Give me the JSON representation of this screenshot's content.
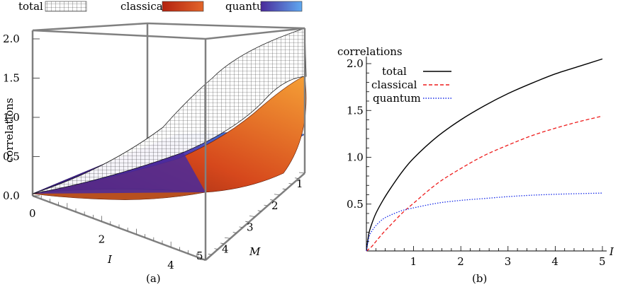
{
  "chart_data": [
    {
      "panel_label": "(a)",
      "type": "surface3d",
      "legend": [
        {
          "name": "total",
          "style": "white mesh",
          "color": "#ffffff"
        },
        {
          "name": "classical",
          "style": "orange-red surface",
          "color": "#d9501f"
        },
        {
          "name": "quantum",
          "style": "purple-blue surface",
          "color": "#4b2a96"
        }
      ],
      "zlabel": "correlations",
      "xlabel": "I",
      "ylabel": "M",
      "z_ticks": [
        "0.0",
        "0.5",
        "1.0",
        "1.5",
        "2.0"
      ],
      "x_ticks": [
        "0",
        "2",
        "4"
      ],
      "x_end_tick": "5",
      "y_ticks": [
        "1",
        "2",
        "3",
        "4",
        "5"
      ],
      "xlim": [
        0,
        5
      ],
      "ylim": [
        1,
        5
      ],
      "zlim": [
        0,
        2.1
      ]
    },
    {
      "panel_label": "(b)",
      "type": "line",
      "ylabel": "correlations",
      "xlabel": "I",
      "xlim": [
        0,
        5.1
      ],
      "ylim": [
        0,
        2.1
      ],
      "x_ticks": [
        "1",
        "2",
        "3",
        "4",
        "5"
      ],
      "y_ticks": [
        "0.5",
        "1.0",
        "1.5",
        "2.0"
      ],
      "legend_position": "top-left",
      "series": [
        {
          "name": "total",
          "color": "#000000",
          "dash": "solid",
          "x": [
            0,
            0.05,
            0.1,
            0.2,
            0.35,
            0.5,
            0.75,
            1,
            1.5,
            2,
            2.5,
            3,
            3.5,
            4,
            4.5,
            5
          ],
          "y": [
            0,
            0.18,
            0.27,
            0.4,
            0.54,
            0.66,
            0.84,
            0.99,
            1.22,
            1.4,
            1.55,
            1.68,
            1.79,
            1.89,
            1.97,
            2.05
          ]
        },
        {
          "name": "classical",
          "color": "#ee1c1c",
          "dash": "dashed",
          "x": [
            0,
            0.1,
            0.2,
            0.35,
            0.5,
            0.75,
            1,
            1.5,
            2,
            2.5,
            3,
            3.5,
            4,
            4.5,
            5
          ],
          "y": [
            0,
            0.04,
            0.1,
            0.19,
            0.27,
            0.4,
            0.51,
            0.72,
            0.88,
            1.02,
            1.13,
            1.23,
            1.31,
            1.38,
            1.44
          ]
        },
        {
          "name": "quantum",
          "color": "#1a2ee8",
          "dash": "dotted",
          "x": [
            0,
            0.05,
            0.1,
            0.2,
            0.35,
            0.5,
            0.75,
            1,
            1.5,
            2,
            2.5,
            3,
            3.5,
            4,
            4.5,
            5
          ],
          "y": [
            0,
            0.14,
            0.2,
            0.27,
            0.34,
            0.38,
            0.43,
            0.46,
            0.51,
            0.54,
            0.56,
            0.58,
            0.595,
            0.605,
            0.612,
            0.618
          ]
        }
      ]
    }
  ]
}
